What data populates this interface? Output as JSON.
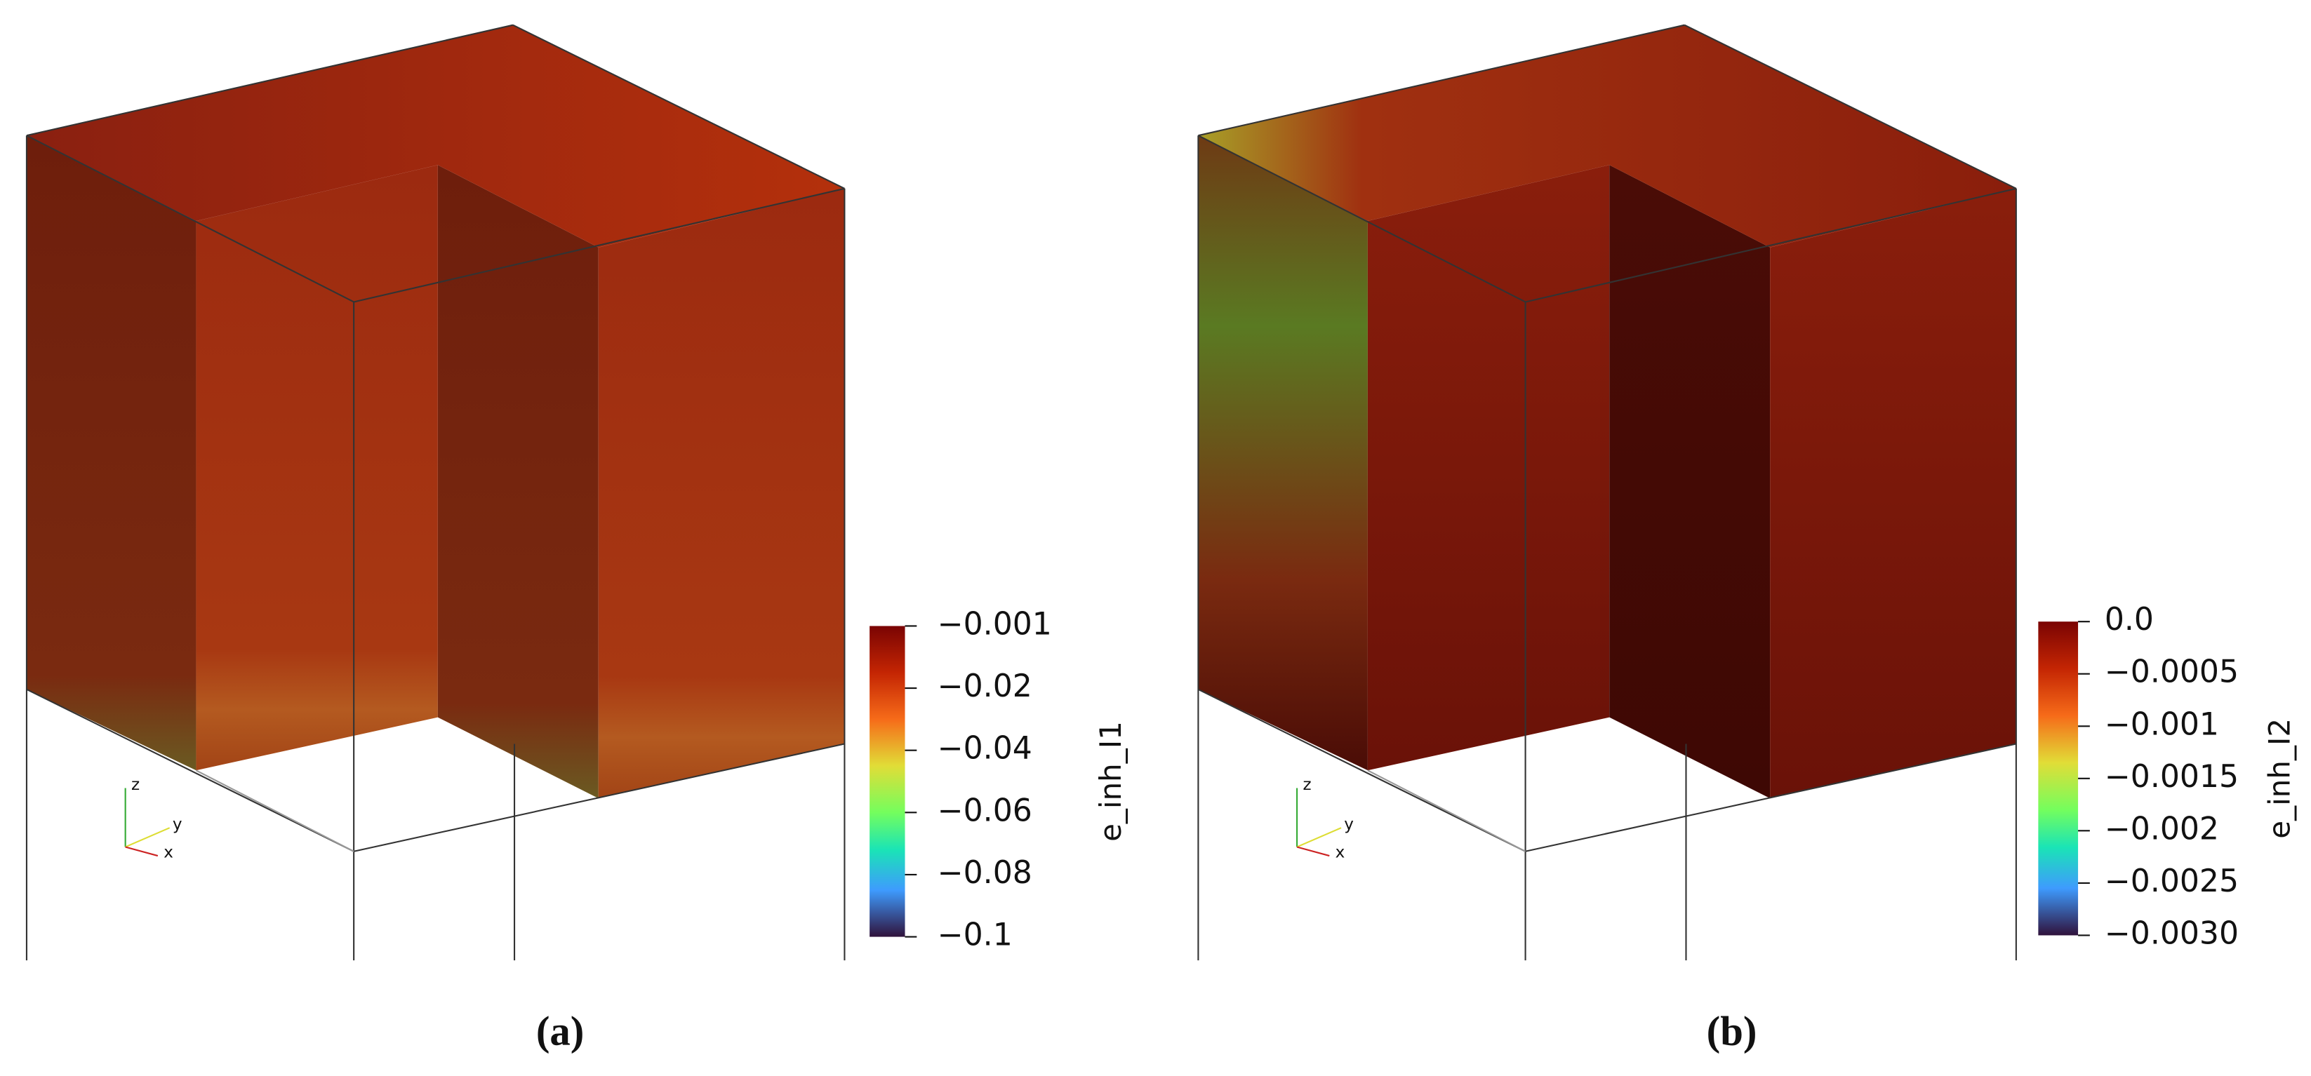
{
  "panels": [
    {
      "label": "(a)",
      "colorbar": {
        "title": "e_inh_I1",
        "ticks": [
          "−0.001",
          "−0.02",
          "−0.04",
          "−0.06",
          "−0.08",
          "−0.1"
        ]
      },
      "axes": [
        "z",
        "y",
        "x"
      ]
    },
    {
      "label": "(b)",
      "colorbar": {
        "title": "e_inh_I2",
        "ticks": [
          "0.0",
          "−0.0005",
          "−0.001",
          "−0.0015",
          "−0.002",
          "−0.0025",
          "−0.0030"
        ]
      },
      "axes": [
        "z",
        "y",
        "x"
      ]
    }
  ]
}
